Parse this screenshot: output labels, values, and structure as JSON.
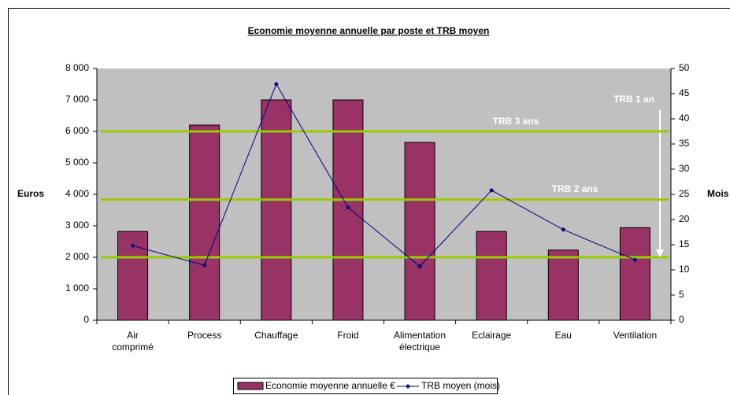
{
  "chart_data": {
    "type": "bar_line",
    "title": "Economie moyenne annuelle par poste et TRB moyen",
    "y_label": "Euros",
    "y2_label": "Mois",
    "categories": [
      "Air comprimé",
      "Process",
      "Chauffage",
      "Froid",
      "Alimentation électrique",
      "Eclairage",
      "Eau",
      "Ventilation"
    ],
    "series": [
      {
        "name": "Economie moyenne annuelle €",
        "type": "bar",
        "color": "#993366",
        "values": [
          2820,
          6200,
          7000,
          7000,
          5650,
          2820,
          2230,
          2940
        ]
      },
      {
        "name": "TRB moyen (mois)",
        "type": "line",
        "axis": "y2",
        "color": "#000080",
        "values": [
          14.8,
          10.9,
          46.9,
          22.4,
          10.7,
          25.8,
          18,
          12
        ]
      }
    ],
    "ylim": [
      0,
      8000
    ],
    "yticks": [
      {
        "value": 0,
        "label": "0"
      },
      {
        "value": 1000,
        "label": "1 000"
      },
      {
        "value": 2000,
        "label": "2 000"
      },
      {
        "value": 3000,
        "label": "3 000"
      },
      {
        "value": 4000,
        "label": "4 000"
      },
      {
        "value": 5000,
        "label": "5 000"
      },
      {
        "value": 6000,
        "label": "6 000"
      },
      {
        "value": 7000,
        "label": "7 000"
      },
      {
        "value": 8000,
        "label": "8 000"
      }
    ],
    "y2lim": [
      0,
      50
    ],
    "y2ticks": [
      0,
      5,
      10,
      15,
      20,
      25,
      30,
      35,
      40,
      45,
      50
    ],
    "reference_lines": [
      {
        "label": "TRB 1 an",
        "value": 2000,
        "color": "#99cc00"
      },
      {
        "label": "TRB 2 ans",
        "value": 3830,
        "color": "#99cc00"
      },
      {
        "label": "TRB 3 ans",
        "value": 6000,
        "color": "#99cc00"
      }
    ],
    "plot_background": "#c0c0c0"
  }
}
